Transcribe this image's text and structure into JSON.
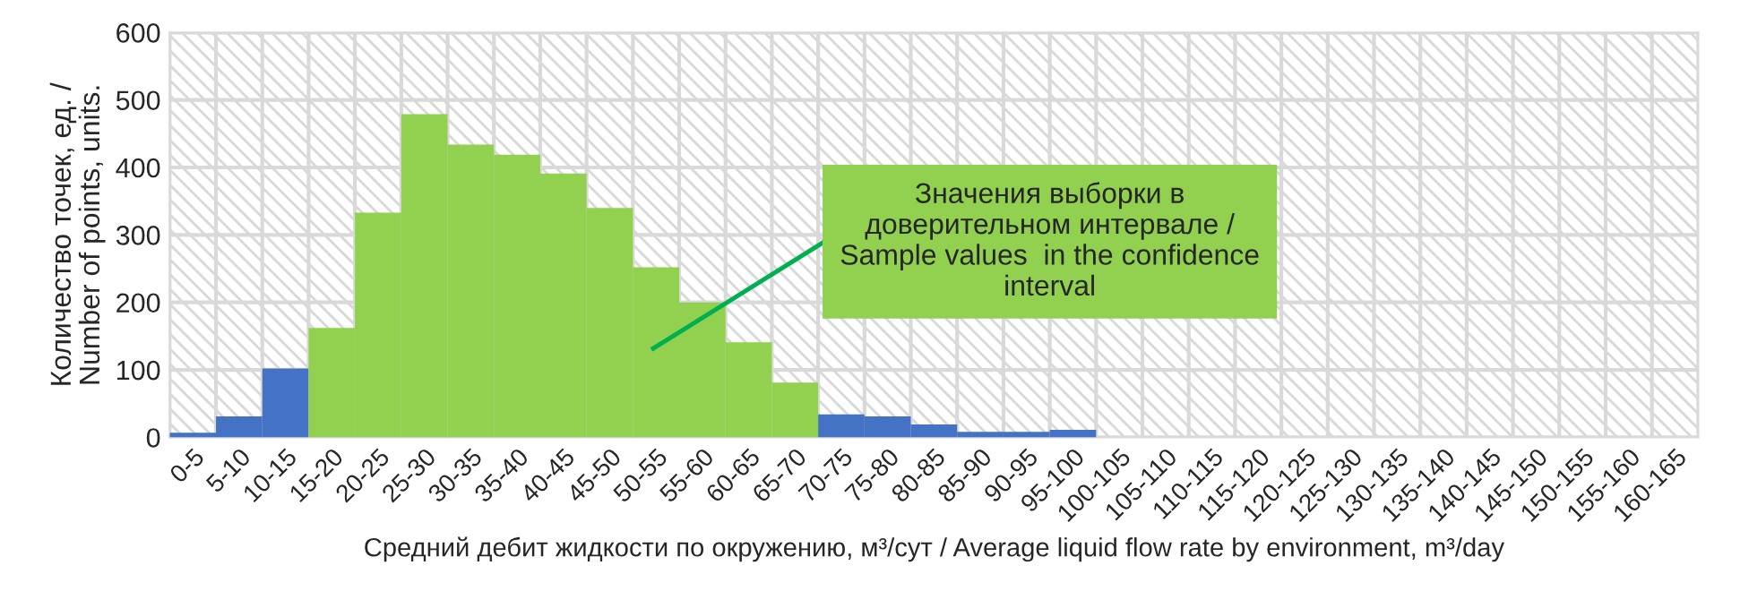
{
  "chart_data": {
    "type": "bar",
    "categories": [
      "0-5",
      "5-10",
      "10-15",
      "15-20",
      "20-25",
      "25-30",
      "30-35",
      "35-40",
      "40-45",
      "45-50",
      "50-55",
      "55-60",
      "60-65",
      "65-70",
      "70-75",
      "75-80",
      "80-85",
      "85-90",
      "90-95",
      "95-100",
      "100-105",
      "105-110",
      "110-115",
      "115-120",
      "120-125",
      "125-130",
      "130-135",
      "135-140",
      "140-145",
      "145-150",
      "150-155",
      "155-160",
      "160-165"
    ],
    "values": [
      7,
      31,
      102,
      162,
      333,
      479,
      434,
      419,
      391,
      340,
      252,
      200,
      141,
      81,
      34,
      31,
      19,
      8,
      8,
      11,
      0,
      0,
      0,
      0,
      0,
      0,
      0,
      0,
      0,
      0,
      0,
      0,
      0
    ],
    "colors": [
      "#4472c4",
      "#4472c4",
      "#4472c4",
      "#92d050",
      "#92d050",
      "#92d050",
      "#92d050",
      "#92d050",
      "#92d050",
      "#92d050",
      "#92d050",
      "#92d050",
      "#92d050",
      "#92d050",
      "#4472c4",
      "#4472c4",
      "#4472c4",
      "#4472c4",
      "#4472c4",
      "#4472c4",
      "#4472c4",
      "#4472c4",
      "#4472c4",
      "#4472c4",
      "#4472c4",
      "#4472c4",
      "#4472c4",
      "#4472c4",
      "#4472c4",
      "#4472c4",
      "#4472c4",
      "#4472c4",
      "#4472c4"
    ],
    "xlabel": "Средний дебит жидкости по окружению, м³/сут / Average liquid flow rate by environment, m³/day",
    "ylabel": "Количество точек, ед. /\nNumber of points, units.",
    "ylim": [
      0,
      600
    ],
    "yticks": [
      0,
      100,
      200,
      300,
      400,
      500,
      600
    ],
    "grid": true,
    "annotations": [
      "Значения выборки в\nдоверительном интервале /\nSample values  in the confidence\ninterval"
    ]
  }
}
